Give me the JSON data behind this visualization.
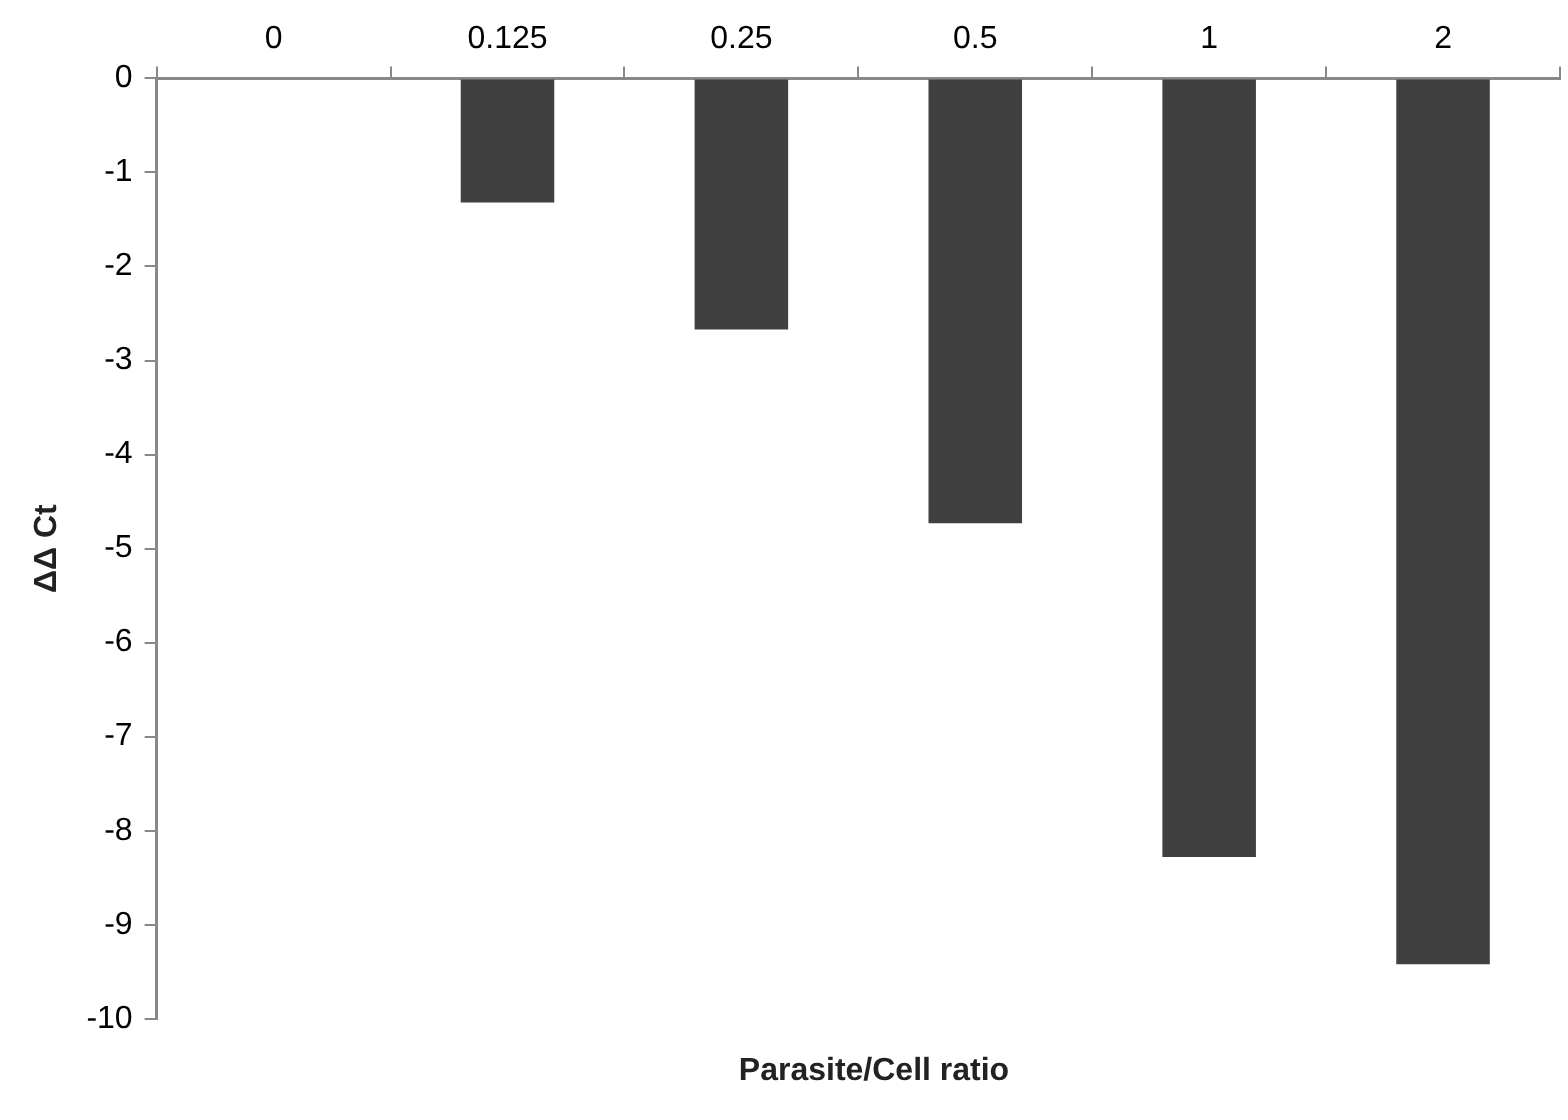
{
  "chart_data": {
    "type": "bar",
    "categories": [
      "0",
      "0.125",
      "0.25",
      "0.5",
      "1",
      "2"
    ],
    "values": [
      0,
      -1.32,
      -2.67,
      -4.73,
      -8.28,
      -9.42
    ],
    "color": "#404040",
    "xlabel": "Parasite/Cell ratio",
    "ylabel": "ΔΔ Ct",
    "ylim": [
      -10,
      0
    ],
    "yticks": [
      0,
      -1,
      -2,
      -3,
      -4,
      -5,
      -6,
      -7,
      -8,
      -9,
      -10
    ],
    "grid": false,
    "legend": false
  }
}
